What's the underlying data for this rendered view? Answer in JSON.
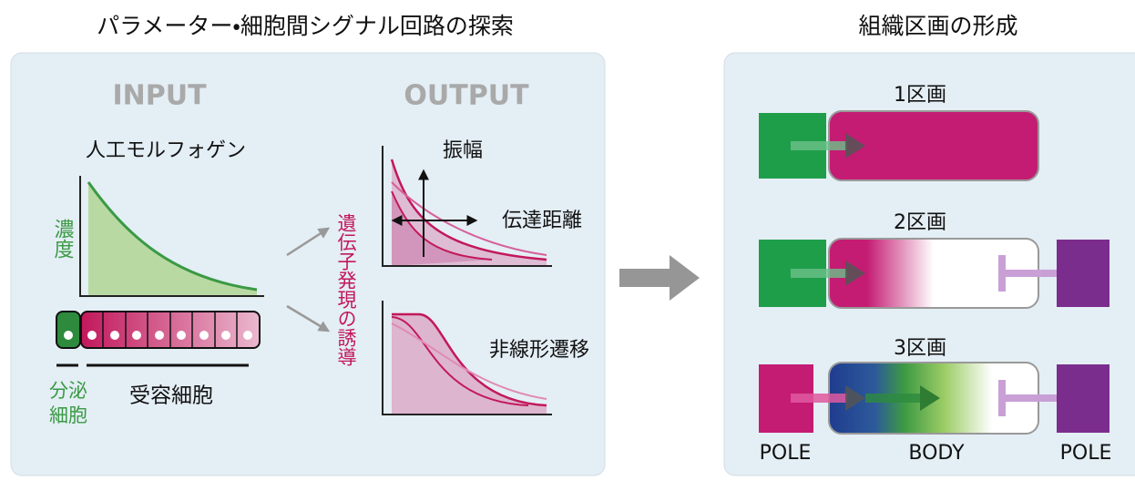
{
  "header": {
    "left_title": "パラメーター・細胞間シグナル回路の探索",
    "right_title": "組織区画の形成"
  },
  "input": {
    "heading": "INPUT",
    "morphogen": "人工モルフォゲン",
    "y_label": "濃度",
    "secreting_cell": [
      "分泌",
      "細胞"
    ],
    "receiving_cell": "受容細胞"
  },
  "output": {
    "heading": "OUTPUT",
    "y_label": "遺伝子発現の誘導",
    "amplitude": "振幅",
    "range": "伝達距離",
    "nonlinear": "非線形遷移"
  },
  "compartments": {
    "rows": [
      "1区画",
      "2区画",
      "3区画"
    ],
    "labels": [
      "POLE",
      "BODY",
      "POLE"
    ]
  }
}
